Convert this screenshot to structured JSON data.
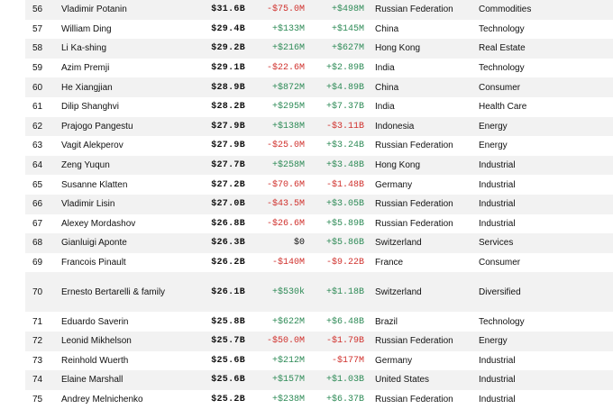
{
  "colors": {
    "positive": "#2e8b57",
    "negative": "#d0312d",
    "row_alt": "#f2f2f2"
  },
  "rows": [
    {
      "rank": "56",
      "name": "Vladimir Potanin",
      "net_worth": "$31.6B",
      "last_change": "-$75.0M",
      "ytd_change": "+$498M",
      "country": "Russian Federation",
      "industry": "Commodities"
    },
    {
      "rank": "57",
      "name": "William Ding",
      "net_worth": "$29.4B",
      "last_change": "+$133M",
      "ytd_change": "+$145M",
      "country": "China",
      "industry": "Technology"
    },
    {
      "rank": "58",
      "name": "Li Ka-shing",
      "net_worth": "$29.2B",
      "last_change": "+$216M",
      "ytd_change": "+$627M",
      "country": "Hong Kong",
      "industry": "Real Estate"
    },
    {
      "rank": "59",
      "name": "Azim Premji",
      "net_worth": "$29.1B",
      "last_change": "-$22.6M",
      "ytd_change": "+$2.89B",
      "country": "India",
      "industry": "Technology"
    },
    {
      "rank": "60",
      "name": "He Xiangjian",
      "net_worth": "$28.9B",
      "last_change": "+$872M",
      "ytd_change": "+$4.89B",
      "country": "China",
      "industry": "Consumer"
    },
    {
      "rank": "61",
      "name": "Dilip Shanghvi",
      "net_worth": "$28.2B",
      "last_change": "+$295M",
      "ytd_change": "+$7.37B",
      "country": "India",
      "industry": "Health Care"
    },
    {
      "rank": "62",
      "name": "Prajogo Pangestu",
      "net_worth": "$27.9B",
      "last_change": "+$138M",
      "ytd_change": "-$3.11B",
      "country": "Indonesia",
      "industry": "Energy"
    },
    {
      "rank": "63",
      "name": "Vagit Alekperov",
      "net_worth": "$27.9B",
      "last_change": "-$25.0M",
      "ytd_change": "+$3.24B",
      "country": "Russian Federation",
      "industry": "Energy"
    },
    {
      "rank": "64",
      "name": "Zeng Yuqun",
      "net_worth": "$27.7B",
      "last_change": "+$258M",
      "ytd_change": "+$3.48B",
      "country": "Hong Kong",
      "industry": "Industrial"
    },
    {
      "rank": "65",
      "name": "Susanne Klatten",
      "net_worth": "$27.2B",
      "last_change": "-$70.6M",
      "ytd_change": "-$1.48B",
      "country": "Germany",
      "industry": "Industrial"
    },
    {
      "rank": "66",
      "name": "Vladimir Lisin",
      "net_worth": "$27.0B",
      "last_change": "-$43.5M",
      "ytd_change": "+$3.05B",
      "country": "Russian Federation",
      "industry": "Industrial"
    },
    {
      "rank": "67",
      "name": "Alexey Mordashov",
      "net_worth": "$26.8B",
      "last_change": "-$26.6M",
      "ytd_change": "+$5.89B",
      "country": "Russian Federation",
      "industry": "Industrial"
    },
    {
      "rank": "68",
      "name": "Gianluigi Aponte",
      "net_worth": "$26.3B",
      "last_change": "$0",
      "ytd_change": "+$5.86B",
      "country": "Switzerland",
      "industry": "Services"
    },
    {
      "rank": "69",
      "name": "Francois Pinault",
      "net_worth": "$26.2B",
      "last_change": "-$140M",
      "ytd_change": "-$9.22B",
      "country": "France",
      "industry": "Consumer"
    },
    {
      "rank": "70",
      "name": "Ernesto Bertarelli & family",
      "net_worth": "$26.1B",
      "last_change": "+$530k",
      "ytd_change": "+$1.18B",
      "country": "Switzerland",
      "industry": "Diversified"
    },
    {
      "rank": "71",
      "name": "Eduardo Saverin",
      "net_worth": "$25.8B",
      "last_change": "+$622M",
      "ytd_change": "+$6.48B",
      "country": "Brazil",
      "industry": "Technology"
    },
    {
      "rank": "72",
      "name": "Leonid Mikhelson",
      "net_worth": "$25.7B",
      "last_change": "-$50.0M",
      "ytd_change": "-$1.79B",
      "country": "Russian Federation",
      "industry": "Energy"
    },
    {
      "rank": "73",
      "name": "Reinhold Wuerth",
      "net_worth": "$25.6B",
      "last_change": "+$212M",
      "ytd_change": "-$177M",
      "country": "Germany",
      "industry": "Industrial"
    },
    {
      "rank": "74",
      "name": "Elaine Marshall",
      "net_worth": "$25.6B",
      "last_change": "+$157M",
      "ytd_change": "+$1.03B",
      "country": "United States",
      "industry": "Industrial"
    },
    {
      "rank": "75",
      "name": "Andrey Melnichenko",
      "net_worth": "$25.2B",
      "last_change": "+$238M",
      "ytd_change": "+$6.37B",
      "country": "Russian Federation",
      "industry": "Industrial"
    }
  ]
}
